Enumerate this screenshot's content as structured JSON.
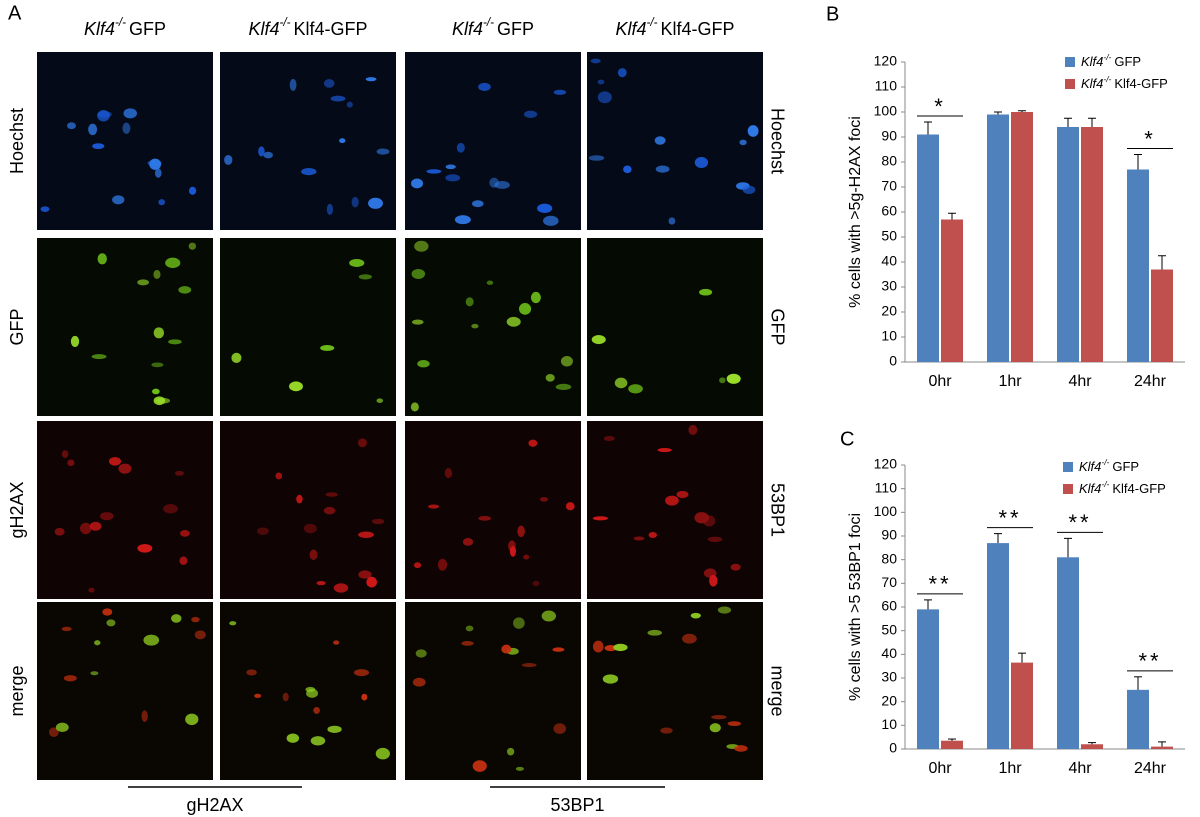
{
  "panel_a": {
    "label": "A",
    "columns": [
      {
        "gene": "Klf4",
        "genotype": "-/-",
        "name": "GFP"
      },
      {
        "gene": "Klf4",
        "genotype": "-/-",
        "name": "Klf4-GFP"
      },
      {
        "gene": "Klf4",
        "genotype": "-/-",
        "name": "GFP"
      },
      {
        "gene": "Klf4",
        "genotype": "-/-",
        "name": "Klf4-GFP"
      }
    ],
    "rows_left": [
      "Hoechst",
      "GFP",
      "gH2AX",
      "merge"
    ],
    "rows_right": [
      "Hoechst",
      "GFP",
      "53BP1",
      "merge"
    ],
    "groups": [
      "gH2AX",
      "53BP1"
    ]
  },
  "chart_data": [
    {
      "type": "bar",
      "panel_label": "B",
      "y_label": "% cells with >5g-H2AX foci",
      "categories": [
        "0hr",
        "1hr",
        "4hr",
        "24hr"
      ],
      "series": [
        {
          "gene": "Klf4",
          "genotype": "-/-",
          "name": "GFP",
          "color": "#4f81bd",
          "values": [
            91,
            99,
            94,
            77
          ],
          "errors": [
            5,
            1,
            3.5,
            6
          ]
        },
        {
          "gene": "Klf4",
          "genotype": "-/-",
          "name": "Klf4-GFP",
          "color": "#c0504d",
          "values": [
            57,
            100,
            94,
            37
          ],
          "errors": [
            2.5,
            0.5,
            3.5,
            5.5
          ]
        }
      ],
      "significance": [
        "*",
        null,
        null,
        "*"
      ],
      "ylim": [
        0,
        120
      ],
      "yticks": [
        0,
        10,
        20,
        30,
        40,
        50,
        60,
        70,
        80,
        90,
        100,
        110,
        120
      ],
      "legend": "top-right"
    },
    {
      "type": "bar",
      "panel_label": "C",
      "y_label": "% cells with >5 53BP1 foci",
      "categories": [
        "0hr",
        "1hr",
        "4hr",
        "24hr"
      ],
      "series": [
        {
          "gene": "Klf4",
          "genotype": "-/-",
          "name": "GFP",
          "color": "#4f81bd",
          "values": [
            59,
            87,
            81,
            25
          ],
          "errors": [
            4,
            4,
            8,
            5.5
          ]
        },
        {
          "gene": "Klf4",
          "genotype": "-/-",
          "name": "Klf4-GFP",
          "color": "#c0504d",
          "values": [
            3.5,
            36.5,
            2,
            1
          ],
          "errors": [
            0.7,
            4,
            0.7,
            2
          ]
        }
      ],
      "significance": [
        "**",
        "**",
        "**",
        "**"
      ],
      "ylim": [
        0,
        120
      ],
      "yticks": [
        0,
        10,
        20,
        30,
        40,
        50,
        60,
        70,
        80,
        90,
        100,
        110,
        120
      ],
      "legend": "top-right"
    }
  ]
}
